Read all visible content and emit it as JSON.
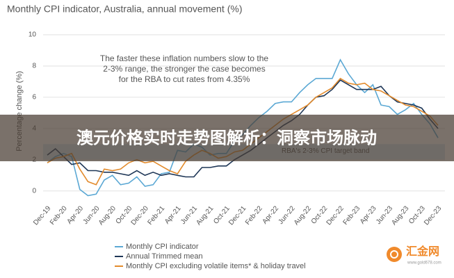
{
  "chart_data": {
    "type": "line",
    "title": "Monthly CPI indicator, Australia, annual movement (%)",
    "y_label": "Percentage change (%)",
    "categories": [
      "Dec-19",
      null,
      "Feb-20",
      null,
      "Apr-20",
      null,
      "Jun-20",
      null,
      "Aug-20",
      null,
      "Oct-20",
      null,
      "Dec-20",
      null,
      "Feb-21",
      null,
      "Apr-21",
      null,
      "Jun-21",
      null,
      "Aug-21",
      null,
      "Oct-21",
      null,
      "Dec-21",
      null,
      "Feb-22",
      null,
      "Apr-22",
      null,
      "Jun-22",
      null,
      "Aug-22",
      null,
      "Oct-22",
      null,
      "Dec-22",
      null,
      "Feb-23",
      null,
      "Apr-23",
      null,
      "Jun-23",
      null,
      "Aug-23",
      null,
      "Oct-23",
      null,
      "Dec-23"
    ],
    "series": [
      {
        "name": "Monthly CPI indicator",
        "color": "#5ba8d4",
        "values": [
          1.8,
          2.2,
          2.4,
          2.2,
          0.1,
          -0.3,
          -0.2,
          0.7,
          1.0,
          0.4,
          0.5,
          0.9,
          0.3,
          0.4,
          1.1,
          1.2,
          2.6,
          2.5,
          3.0,
          2.8,
          2.3,
          2.4,
          2.4,
          3.2,
          3.6,
          4.2,
          4.7,
          5.1,
          5.6,
          5.7,
          5.7,
          6.3,
          6.8,
          7.2,
          7.2,
          7.2,
          8.4,
          7.5,
          6.8,
          6.3,
          6.8,
          5.5,
          5.4,
          4.9,
          5.2,
          5.6,
          4.9,
          4.3,
          3.4
        ]
      },
      {
        "name": "Annual Trimmed mean",
        "color": "#1e3656",
        "values": [
          2.3,
          2.7,
          2.2,
          1.7,
          1.8,
          1.3,
          1.3,
          1.2,
          1.2,
          1.1,
          1.0,
          1.3,
          1.0,
          1.2,
          1.0,
          1.1,
          1.0,
          0.9,
          0.9,
          1.5,
          1.5,
          1.6,
          1.6,
          2.0,
          2.3,
          2.6,
          3.0,
          3.4,
          3.8,
          4.2,
          4.5,
          4.9,
          5.5,
          6.0,
          6.1,
          6.5,
          7.1,
          6.8,
          6.5,
          6.5,
          6.5,
          6.7,
          6.1,
          5.7,
          5.6,
          5.5,
          5.3,
          4.6,
          4.0
        ]
      },
      {
        "name": "Monthly CPI excluding volatile items* & holiday travel",
        "color": "#e38b2c",
        "values": [
          1.8,
          2.1,
          2.2,
          2.4,
          1.4,
          0.6,
          0.4,
          1.4,
          1.3,
          1.4,
          1.8,
          2.0,
          1.8,
          1.9,
          1.6,
          1.3,
          1.1,
          1.9,
          2.3,
          2.6,
          2.4,
          2.1,
          2.2,
          2.5,
          2.6,
          3.0,
          3.4,
          3.8,
          4.2,
          4.6,
          4.9,
          5.2,
          5.5,
          6.0,
          6.3,
          6.6,
          7.2,
          6.9,
          6.8,
          6.9,
          6.5,
          6.4,
          6.1,
          5.8,
          5.5,
          5.4,
          5.1,
          4.8,
          4.2
        ]
      }
    ],
    "ylim": [
      -0.5,
      10
    ],
    "yticks": [
      0,
      2,
      4,
      6,
      8,
      10
    ],
    "grid": true,
    "band": [
      2,
      3
    ],
    "band_color": "#d6e9f5",
    "band_label": "RBA's 2-3% CPI target band",
    "annotations": [
      "The faster these inflation numbers slow to the",
      "2-3% range, the stronger the case becomes",
      "for the RBA to cut rates from 4.35%"
    ],
    "legend": "bottom"
  },
  "banner": {
    "text": "澳元价格实时走势图解析：洞察市场脉动"
  },
  "watermark": {
    "name": "汇金网",
    "url": "www.gold678.com"
  }
}
